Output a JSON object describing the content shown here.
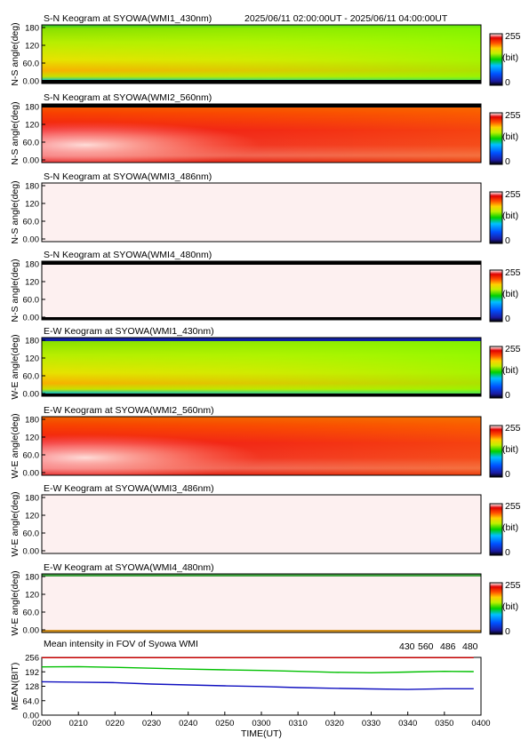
{
  "header": {
    "time_range": "2025/06/11 02:00:00UT - 2025/06/11 04:00:00UT"
  },
  "colorbar": {
    "max_label": "255",
    "unit_label": "(bit)",
    "min_label": "0"
  },
  "chart_data": [
    {
      "type": "heatmap",
      "title": "S-N Keogram at SYOWA(WMI1_430nm)",
      "ylabel": "N-S angle(deg)",
      "yticks": [
        "180",
        "120",
        "60.0",
        "0.00"
      ],
      "ylim": [
        0,
        180
      ],
      "style": "green-430"
    },
    {
      "type": "heatmap",
      "title": "S-N Keogram at SYOWA(WMI2_560nm)",
      "ylabel": "N-S angle(deg)",
      "yticks": [
        "180",
        "120",
        "60.0",
        "0.00"
      ],
      "ylim": [
        0,
        180
      ],
      "style": "red-560"
    },
    {
      "type": "heatmap",
      "title": "S-N Keogram at SYOWA(WMI3_486nm)",
      "ylabel": "N-S angle(deg)",
      "yticks": [
        "180",
        "120",
        "60.0",
        "0.00"
      ],
      "ylim": [
        0,
        180
      ],
      "style": "saturated"
    },
    {
      "type": "heatmap",
      "title": "S-N Keogram at SYOWA(WMI4_480nm)",
      "ylabel": "N-S angle(deg)",
      "yticks": [
        "180",
        "120",
        "60.0",
        "0.00"
      ],
      "ylim": [
        0,
        180
      ],
      "style": "saturated-black"
    },
    {
      "type": "heatmap",
      "title": "E-W Keogram at SYOWA(WMI1_430nm)",
      "ylabel": "W-E angle(deg)",
      "yticks": [
        "180",
        "120",
        "60.0",
        "0.00"
      ],
      "ylim": [
        0,
        180
      ],
      "style": "green-430"
    },
    {
      "type": "heatmap",
      "title": "E-W Keogram at SYOWA(WMI2_560nm)",
      "ylabel": "W-E angle(deg)",
      "yticks": [
        "180",
        "120",
        "60.0",
        "0.00"
      ],
      "ylim": [
        0,
        180
      ],
      "style": "red-560"
    },
    {
      "type": "heatmap",
      "title": "E-W Keogram at SYOWA(WMI3_486nm)",
      "ylabel": "W-E angle(deg)",
      "yticks": [
        "180",
        "120",
        "60.0",
        "0.00"
      ],
      "ylim": [
        0,
        180
      ],
      "style": "saturated"
    },
    {
      "type": "heatmap",
      "title": "E-W Keogram at SYOWA(WMI4_480nm)",
      "ylabel": "W-E angle(deg)",
      "yticks": [
        "180",
        "120",
        "60.0",
        "0.00"
      ],
      "ylim": [
        0,
        180
      ],
      "style": "saturated-green"
    },
    {
      "type": "line",
      "title": "Mean intensity in FOV of Syowa WMI",
      "ylabel": "MEAN(BIT)",
      "xlabel": "TIME(UT)",
      "ylim": [
        0,
        256
      ],
      "yticks": [
        "256",
        "192",
        "128",
        "64.0",
        "0.00"
      ],
      "xlim": [
        0,
        120
      ],
      "xticks": [
        "0200",
        "0210",
        "0220",
        "0230",
        "0240",
        "0250",
        "0300",
        "0310",
        "0320",
        "0330",
        "0340",
        "0350",
        "0400"
      ],
      "legend": [
        "430",
        "560",
        "486",
        "480"
      ],
      "series": [
        {
          "name": "430",
          "color": "#1010c0",
          "x": [
            0,
            10,
            20,
            30,
            40,
            50,
            60,
            70,
            80,
            90,
            100,
            110,
            118
          ],
          "values": [
            148,
            146,
            144,
            138,
            134,
            130,
            127,
            122,
            119,
            116,
            114,
            117,
            117
          ]
        },
        {
          "name": "560",
          "color": "#00c000",
          "x": [
            0,
            10,
            20,
            30,
            40,
            50,
            60,
            70,
            80,
            90,
            100,
            110,
            118
          ],
          "values": [
            214,
            215,
            212,
            208,
            204,
            201,
            198,
            194,
            190,
            188,
            191,
            194,
            193
          ]
        },
        {
          "name": "486",
          "color": "#d00000",
          "x": [
            0,
            10,
            20,
            30,
            40,
            50,
            60,
            70,
            80,
            90,
            100,
            110,
            118
          ],
          "values": [
            255,
            255,
            255,
            255,
            255,
            255,
            255,
            255,
            255,
            255,
            255,
            255,
            255
          ]
        },
        {
          "name": "480",
          "color": "#000000",
          "x": [
            0,
            10,
            20,
            30,
            40,
            50,
            60,
            70,
            80,
            90,
            100,
            110,
            118
          ],
          "values": [
            255,
            255,
            255,
            255,
            255,
            255,
            255,
            255,
            255,
            255,
            255,
            255,
            255
          ]
        }
      ]
    }
  ]
}
